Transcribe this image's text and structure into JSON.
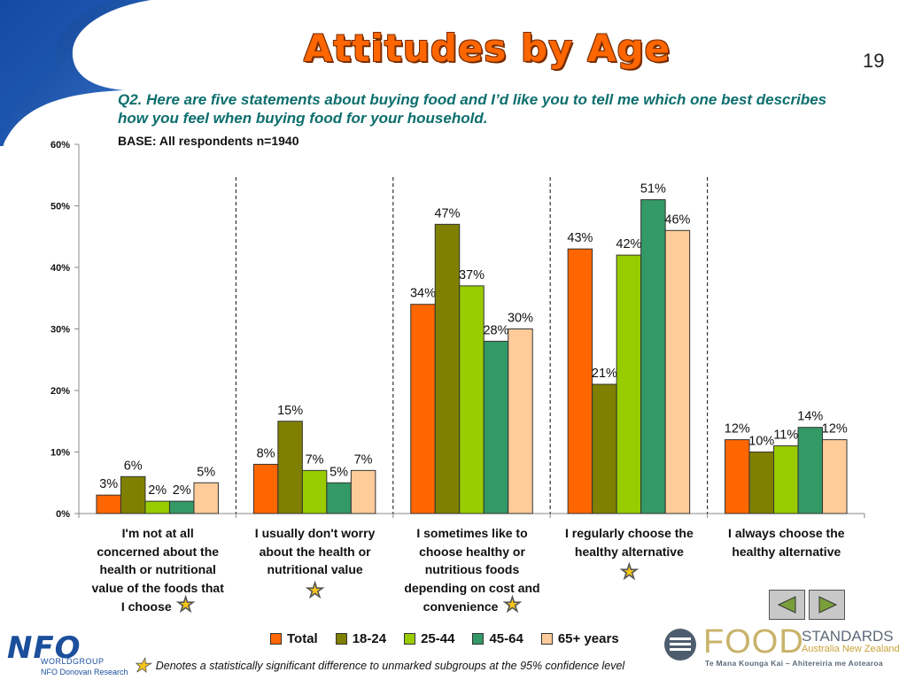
{
  "page": {
    "title": "Attitudes by Age",
    "page_number": "19",
    "question": "Q2. Here are five statements about buying food and I’d like you to tell me which one best describes how you feel when buying food for your household.",
    "base": "BASE: All respondents n=1940",
    "footnote": "Denotes a statistically significant difference to unmarked subgroups at the 95% confidence level",
    "star_icon": "star-icon"
  },
  "logos": {
    "nfo": "NFO",
    "nfo_group": "WORLDGROUP",
    "nfo_research": "NFO Donovan Research",
    "fs_food": "FOOD",
    "fs_standards": "STANDARDS",
    "fs_region": "Australia New Zealand",
    "fs_maori": "Te Mana Kounga Kai – Ahitereiria me Aotearoa"
  },
  "nav": {
    "prev_icon": "prev-slide-icon",
    "next_icon": "next-slide-icon"
  },
  "chart_data": {
    "type": "bar",
    "categories": [
      [
        "I'm not at all",
        "concerned about the",
        "health or nutritional",
        "value of the foods that",
        "I choose"
      ],
      [
        "I usually don't worry",
        "about the health or",
        "nutritional value"
      ],
      [
        "I sometimes like to",
        "choose healthy or",
        "nutritious foods",
        "depending on cost and",
        "convenience"
      ],
      [
        "I regularly choose the",
        "healthy alternative"
      ],
      [
        "I always choose the",
        "healthy alternative"
      ]
    ],
    "starred": [
      true,
      true,
      true,
      true,
      false
    ],
    "series": [
      {
        "name": "Total",
        "color": "#ff6600",
        "values": [
          3,
          8,
          34,
          43,
          12
        ]
      },
      {
        "name": "18-24",
        "color": "#808000",
        "values": [
          6,
          15,
          47,
          21,
          10
        ]
      },
      {
        "name": "25-44",
        "color": "#99cc00",
        "values": [
          2,
          7,
          37,
          42,
          11
        ]
      },
      {
        "name": "45-64",
        "color": "#339966",
        "values": [
          2,
          5,
          28,
          51,
          14
        ]
      },
      {
        "name": "65+ years",
        "color": "#ffcc99",
        "values": [
          5,
          7,
          30,
          46,
          12
        ]
      }
    ],
    "ylim": [
      0,
      60
    ],
    "yticks": [
      "0%",
      "10%",
      "20%",
      "30%",
      "40%",
      "50%",
      "60%"
    ],
    "value_suffix": "%"
  }
}
